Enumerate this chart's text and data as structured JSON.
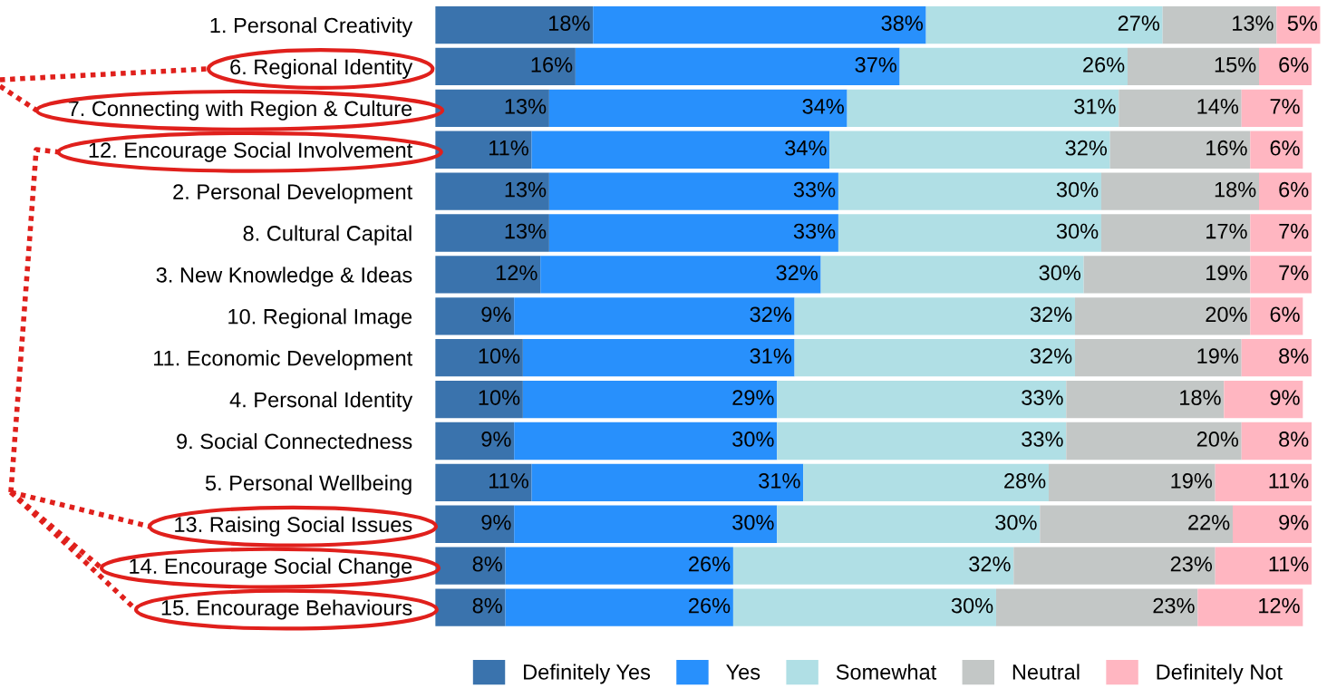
{
  "chart_data": {
    "type": "bar",
    "orientation": "horizontal",
    "stacked": true,
    "legend": "bottom",
    "categories": [
      "1. Personal Creativity",
      "6. Regional Identity",
      "7. Connecting with Region & Culture",
      "12. Encourage Social Involvement",
      "2. Personal Development",
      "8. Cultural Capital",
      "3. New Knowledge & Ideas",
      "10. Regional Image",
      "11. Economic Development",
      "4. Personal Identity",
      "9. Social Connectedness",
      "5. Personal Wellbeing",
      "13. Raising Social Issues",
      "14. Encourage Social Change",
      "15. Encourage Behaviours"
    ],
    "series": [
      {
        "name": "Definitely Yes",
        "color": "#3a73ad",
        "values": [
          18,
          16,
          13,
          11,
          13,
          13,
          12,
          9,
          10,
          10,
          9,
          11,
          9,
          8,
          8
        ],
        "value_labels": [
          "18%",
          "16%",
          "13%",
          "11%",
          "13%",
          "13%",
          "12%",
          "9%",
          "10%",
          "10%",
          "9%",
          "11%",
          "9%",
          "8%",
          "8%"
        ]
      },
      {
        "name": "Yes",
        "color": "#2890fc",
        "values": [
          38,
          37,
          34,
          34,
          33,
          33,
          32,
          32,
          31,
          29,
          30,
          31,
          30,
          26,
          26
        ],
        "value_labels": [
          "38%",
          "37%",
          "34%",
          "34%",
          "33%",
          "33%",
          "32%",
          "32%",
          "31%",
          "29%",
          "30%",
          "31%",
          "30%",
          "26%",
          "26%"
        ]
      },
      {
        "name": "Somewhat",
        "color": "#b0dfe5",
        "values": [
          27,
          26,
          31,
          32,
          30,
          30,
          30,
          32,
          32,
          33,
          33,
          28,
          30,
          32,
          30
        ],
        "value_labels": [
          "27%",
          "26%",
          "31%",
          "32%",
          "30%",
          "30%",
          "30%",
          "32%",
          "32%",
          "33%",
          "33%",
          "28%",
          "30%",
          "32%",
          "30%"
        ]
      },
      {
        "name": "Neutral",
        "color": "#c3c7c6",
        "values": [
          13,
          15,
          14,
          16,
          18,
          17,
          19,
          20,
          19,
          18,
          20,
          19,
          22,
          23,
          23
        ],
        "value_labels": [
          "13%",
          "15%",
          "14%",
          "16%",
          "18%",
          "17%",
          "19%",
          "20%",
          "19%",
          "18%",
          "20%",
          "19%",
          "22%",
          "23%",
          "23%"
        ]
      },
      {
        "name": "Definitely Not",
        "color": "#ffb6c1",
        "values": [
          5,
          6,
          7,
          6,
          6,
          7,
          7,
          6,
          8,
          9,
          8,
          11,
          9,
          11,
          12
        ],
        "value_labels": [
          "5%",
          "6%",
          "7%",
          "6%",
          "6%",
          "7%",
          "7%",
          "6%",
          "8%",
          "9%",
          "8%",
          "11%",
          "9%",
          "11%",
          "12%"
        ]
      }
    ]
  }
}
